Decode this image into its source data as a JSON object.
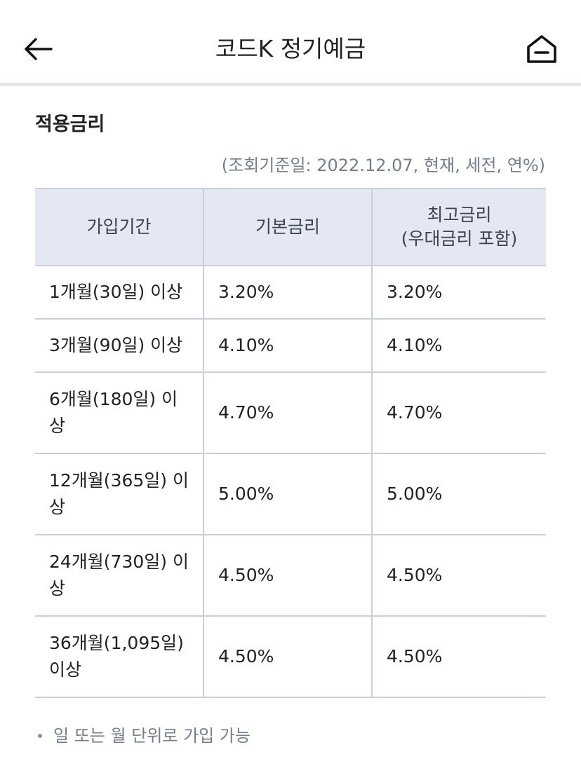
{
  "header": {
    "title": "코드K 정기예금",
    "back_icon": "arrow-left-icon",
    "home_icon": "home-icon"
  },
  "section": {
    "title": "적용금리",
    "query_date": "(조회기준일: 2022.12.07, 현재, 세전, 연%)"
  },
  "table": {
    "headers": {
      "period": "가입기간",
      "base_rate": "기본금리",
      "max_rate_line1": "최고금리",
      "max_rate_line2": "(우대금리 포함)"
    },
    "rows": [
      {
        "period": "1개월(30일) 이상",
        "base_rate": "3.20%",
        "max_rate": "3.20%"
      },
      {
        "period": "3개월(90일) 이상",
        "base_rate": "4.10%",
        "max_rate": "4.10%"
      },
      {
        "period": "6개월(180일) 이상",
        "base_rate": "4.70%",
        "max_rate": "4.70%"
      },
      {
        "period": "12개월(365일) 이상",
        "base_rate": "5.00%",
        "max_rate": "5.00%"
      },
      {
        "period": "24개월(730일) 이상",
        "base_rate": "4.50%",
        "max_rate": "4.50%"
      },
      {
        "period": "36개월(1,095일) 이상",
        "base_rate": "4.50%",
        "max_rate": "4.50%"
      }
    ]
  },
  "notes": [
    "일 또는 월 단위로 가입 가능"
  ],
  "colors": {
    "header_bg": "#e3e8f2",
    "border": "#c9d0dc",
    "muted_text": "#737f8c"
  }
}
